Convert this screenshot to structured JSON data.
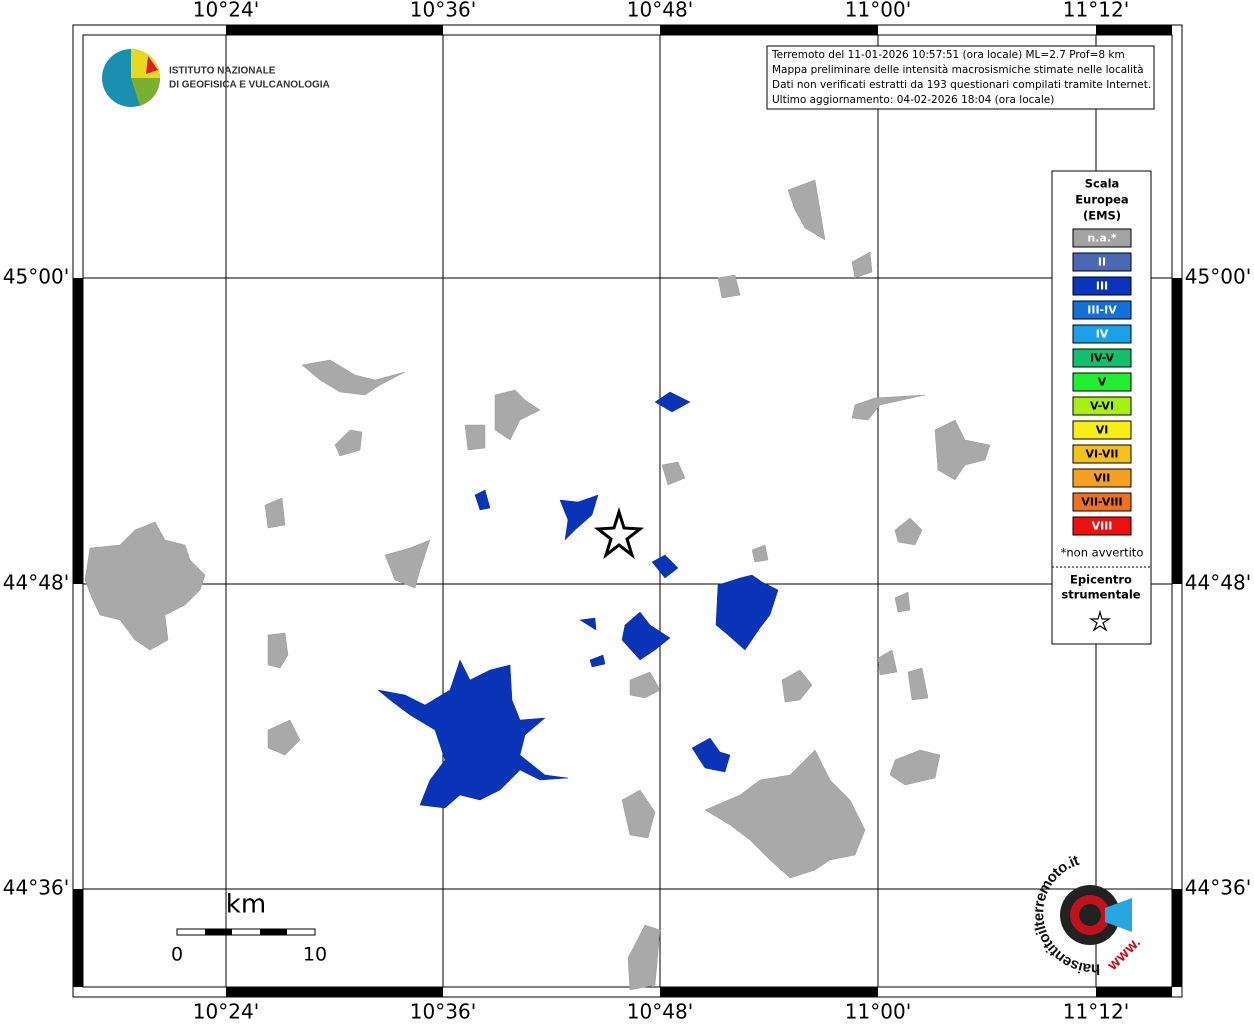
{
  "grid_labels": {
    "longitudes": [
      "10°24'",
      "10°36'",
      "10°48'",
      "11°00'",
      "11°12'"
    ],
    "latitudes": [
      "45°00'",
      "44°48'",
      "44°36'"
    ]
  },
  "logo": {
    "line1": "ISTITUTO NAZIONALE",
    "line2": "DI GEOFISICA E VULCANOLOGIA"
  },
  "info_box": {
    "lines": [
      "Terremoto del 11-01-2026 10:57:51 (ora locale) ML=2.7 Prof=8 km",
      "Mappa preliminare delle intensità macrosismiche stimate nelle località",
      "Dati non verificati estratti da 193 questionari compilati tramite Internet.",
      "Ultimo aggiornamento: 04-02-2026 18:04 (ora locale)"
    ]
  },
  "legend": {
    "title_lines": [
      "Scala",
      "Europea",
      "(EMS)"
    ],
    "items": [
      {
        "label": "n.a.*",
        "color": "#a3a3a3",
        "text_color": "#ffffff"
      },
      {
        "label": "II",
        "color": "#4a68b4",
        "text_color": "#ffffff"
      },
      {
        "label": "III",
        "color": "#0a34bc",
        "text_color": "#ffffff"
      },
      {
        "label": "III-IV",
        "color": "#1270d8",
        "text_color": "#ffffff"
      },
      {
        "label": "IV",
        "color": "#1aa2e8",
        "text_color": "#ffffff"
      },
      {
        "label": "IV-V",
        "color": "#12c06c",
        "text_color": "#000000"
      },
      {
        "label": "V",
        "color": "#22ee30",
        "text_color": "#000000"
      },
      {
        "label": "V-VI",
        "color": "#a8f012",
        "text_color": "#000000"
      },
      {
        "label": "VI",
        "color": "#f6ee14",
        "text_color": "#000000"
      },
      {
        "label": "VI-VII",
        "color": "#f6c01a",
        "text_color": "#000000"
      },
      {
        "label": "VII",
        "color": "#f6a020",
        "text_color": "#000000"
      },
      {
        "label": "VII-VIII",
        "color": "#f07020",
        "text_color": "#000000"
      },
      {
        "label": "VIII",
        "color": "#ee1010",
        "text_color": "#ffffff"
      }
    ],
    "note": "*non avvertito",
    "epicenter_lines": [
      "Epicentro",
      "strumentale"
    ]
  },
  "scale_bar": {
    "unit": "km",
    "start": "0",
    "end": "10"
  },
  "badge": {
    "text": "haisentitoilterremoto.it",
    "www": "WWW."
  }
}
